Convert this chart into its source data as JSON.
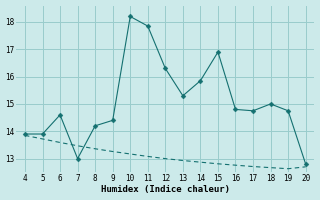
{
  "x": [
    4,
    5,
    6,
    7,
    8,
    9,
    10,
    11,
    12,
    13,
    14,
    15,
    16,
    17,
    18,
    19,
    20
  ],
  "y_line": [
    13.9,
    13.9,
    14.6,
    13.0,
    14.2,
    14.4,
    18.2,
    17.85,
    16.3,
    15.3,
    15.85,
    16.9,
    14.8,
    14.75,
    15.0,
    14.75,
    12.8
  ],
  "y_trend": [
    13.85,
    13.72,
    13.59,
    13.47,
    13.36,
    13.26,
    13.17,
    13.08,
    13.0,
    12.93,
    12.87,
    12.81,
    12.76,
    12.71,
    12.67,
    12.63,
    12.7
  ],
  "xlabel": "Humidex (Indice chaleur)",
  "ylim": [
    12.5,
    18.6
  ],
  "xlim": [
    3.5,
    20.5
  ],
  "yticks": [
    13,
    14,
    15,
    16,
    17,
    18
  ],
  "xticks": [
    4,
    5,
    6,
    7,
    8,
    9,
    10,
    11,
    12,
    13,
    14,
    15,
    16,
    17,
    18,
    19,
    20
  ],
  "line_color": "#147070",
  "trend_color": "#147070",
  "bg_color": "#cceaea",
  "grid_color": "#99cccc",
  "marker_size": 2.5
}
